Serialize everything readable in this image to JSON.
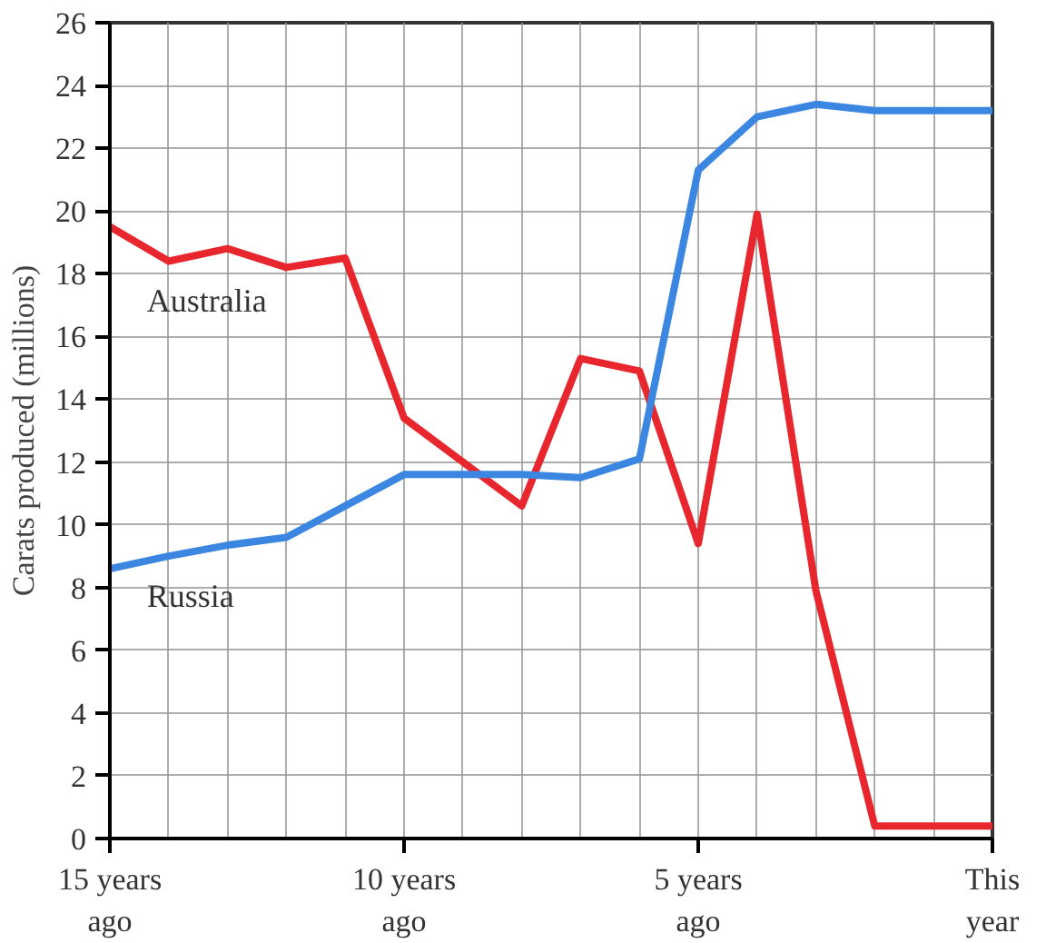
{
  "chart_data": {
    "type": "line",
    "ylabel": "Carats produced (millions)",
    "categories": [
      "15 years\nago",
      null,
      null,
      null,
      null,
      "10 years\nago",
      null,
      null,
      null,
      null,
      "5 years\nago",
      null,
      null,
      null,
      null,
      "This\nyear"
    ],
    "series": [
      {
        "name": "Australia",
        "color": "#e8262d",
        "values": [
          19.5,
          18.4,
          18.8,
          18.2,
          18.5,
          13.4,
          12.0,
          10.6,
          15.3,
          14.9,
          9.4,
          19.9,
          7.9,
          0.4,
          0.4,
          0.4
        ]
      },
      {
        "name": "Russia",
        "color": "#3a86e0",
        "values": [
          8.6,
          9.0,
          9.35,
          9.6,
          10.6,
          11.6,
          11.6,
          11.6,
          11.5,
          12.1,
          21.3,
          23.0,
          23.4,
          23.2,
          23.2,
          23.2
        ]
      }
    ],
    "ylim": [
      0,
      26
    ],
    "yticks": [
      0,
      2,
      4,
      6,
      8,
      10,
      12,
      14,
      16,
      18,
      20,
      22,
      24,
      26
    ],
    "grid": true,
    "legend": false,
    "marker": "none",
    "line_style": "solid"
  }
}
